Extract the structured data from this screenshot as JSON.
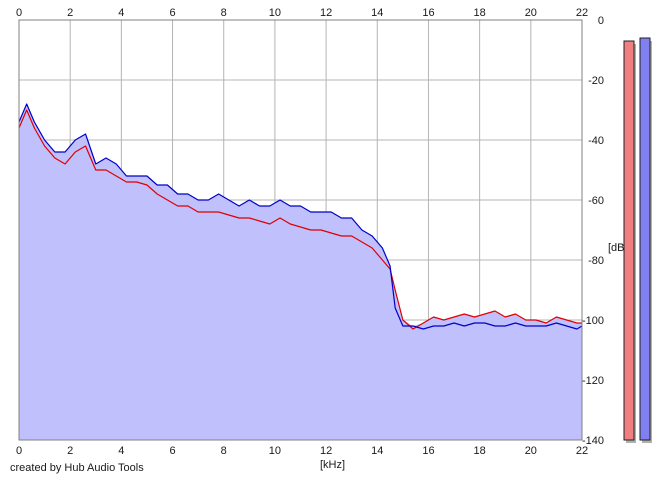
{
  "chart_data": {
    "type": "line",
    "x_unit_label": "[kHz]",
    "y_unit_label": "[dB]",
    "xlim": [
      0,
      22
    ],
    "ylim": [
      -140,
      0
    ],
    "x_ticks": [
      0,
      2,
      4,
      6,
      8,
      10,
      12,
      14,
      16,
      18,
      20,
      22
    ],
    "y_ticks": [
      0,
      -20,
      -40,
      -60,
      -80,
      -100,
      -120,
      -140
    ],
    "grid": true,
    "fill_color": "#c0c0fc",
    "series": [
      {
        "color": "#e00000",
        "x": [
          0,
          0.3,
          0.6,
          1.0,
          1.4,
          1.8,
          2.2,
          2.6,
          3.0,
          3.4,
          3.8,
          4.2,
          4.6,
          5.0,
          5.4,
          5.8,
          6.2,
          6.6,
          7.0,
          7.4,
          7.8,
          8.2,
          8.6,
          9.0,
          9.4,
          9.8,
          10.2,
          10.6,
          11.0,
          11.4,
          11.8,
          12.2,
          12.6,
          13.0,
          13.4,
          13.8,
          14.2,
          14.5,
          14.7,
          15.0,
          15.4,
          15.8,
          16.2,
          16.6,
          17.0,
          17.4,
          17.8,
          18.2,
          18.6,
          19.0,
          19.4,
          19.8,
          20.2,
          20.6,
          21.0,
          21.4,
          21.8,
          22.0
        ],
        "y": [
          -36,
          -30,
          -36,
          -42,
          -46,
          -48,
          -44,
          -42,
          -50,
          -50,
          -52,
          -54,
          -54,
          -55,
          -58,
          -60,
          -62,
          -62,
          -64,
          -64,
          -64,
          -65,
          -66,
          -66,
          -67,
          -68,
          -66,
          -68,
          -69,
          -70,
          -70,
          -71,
          -72,
          -72,
          -74,
          -76,
          -80,
          -83,
          -90,
          -100,
          -103,
          -101,
          -99,
          -100,
          -99,
          -98,
          -99,
          -98,
          -97,
          -99,
          -98,
          -100,
          -100,
          -101,
          -99,
          -100,
          -101,
          -101
        ]
      },
      {
        "color": "#0000c8",
        "x": [
          0,
          0.3,
          0.6,
          1.0,
          1.4,
          1.8,
          2.2,
          2.6,
          3.0,
          3.4,
          3.8,
          4.2,
          4.6,
          5.0,
          5.4,
          5.8,
          6.2,
          6.6,
          7.0,
          7.4,
          7.8,
          8.2,
          8.6,
          9.0,
          9.4,
          9.8,
          10.2,
          10.6,
          11.0,
          11.4,
          11.8,
          12.2,
          12.6,
          13.0,
          13.4,
          13.8,
          14.2,
          14.5,
          14.7,
          15.0,
          15.4,
          15.8,
          16.2,
          16.6,
          17.0,
          17.4,
          17.8,
          18.2,
          18.6,
          19.0,
          19.4,
          19.8,
          20.2,
          20.6,
          21.0,
          21.4,
          21.8,
          22.0
        ],
        "y": [
          -34,
          -28,
          -34,
          -40,
          -44,
          -44,
          -40,
          -38,
          -48,
          -46,
          -48,
          -52,
          -52,
          -52,
          -55,
          -55,
          -58,
          -58,
          -60,
          -60,
          -58,
          -60,
          -62,
          -60,
          -62,
          -62,
          -60,
          -62,
          -62,
          -64,
          -64,
          -64,
          -66,
          -66,
          -70,
          -72,
          -76,
          -82,
          -96,
          -102,
          -102,
          -103,
          -102,
          -102,
          -101,
          -102,
          -101,
          -101,
          -102,
          -102,
          -101,
          -102,
          -102,
          -102,
          -101,
          -102,
          -103,
          -102
        ]
      }
    ]
  },
  "level_meters": [
    {
      "color": "#f08080",
      "level_db": -7
    },
    {
      "color": "#8080f0",
      "level_db": -6
    }
  ],
  "credit": "created by Hub Audio Tools"
}
